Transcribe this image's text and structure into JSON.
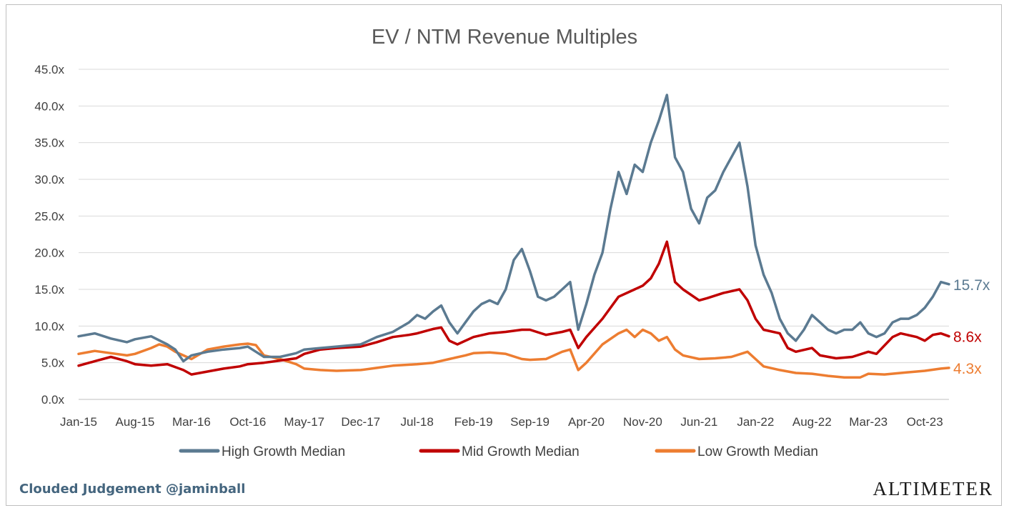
{
  "chart_data": {
    "type": "line",
    "title": "EV / NTM Revenue Multiples",
    "xlabel": "",
    "ylabel": "",
    "ylim": [
      0,
      45
    ],
    "y_ticks": [
      "0.0x",
      "5.0x",
      "10.0x",
      "15.0x",
      "20.0x",
      "25.0x",
      "30.0x",
      "35.0x",
      "40.0x",
      "45.0x"
    ],
    "x_ticks": [
      "Jan-15",
      "Aug-15",
      "Mar-16",
      "Oct-16",
      "May-17",
      "Dec-17",
      "Jul-18",
      "Feb-19",
      "Sep-19",
      "Apr-20",
      "Nov-20",
      "Jun-21",
      "Jan-22",
      "Aug-22",
      "Mar-23",
      "Oct-23"
    ],
    "x_range": [
      "Jan-15",
      "Jan-24"
    ],
    "grid": "horizontal",
    "legend_position": "bottom",
    "series": [
      {
        "name": "High Growth Median",
        "color": "#5b7a91",
        "end_label": "15.7x",
        "points": [
          [
            "Jan-15",
            8.6
          ],
          [
            "Mar-15",
            9.0
          ],
          [
            "May-15",
            8.3
          ],
          [
            "Jul-15",
            7.8
          ],
          [
            "Aug-15",
            8.2
          ],
          [
            "Oct-15",
            8.6
          ],
          [
            "Dec-15",
            7.5
          ],
          [
            "Jan-16",
            6.8
          ],
          [
            "Feb-16",
            5.2
          ],
          [
            "Mar-16",
            6.0
          ],
          [
            "May-16",
            6.5
          ],
          [
            "Jul-16",
            6.8
          ],
          [
            "Sep-16",
            7.0
          ],
          [
            "Oct-16",
            7.2
          ],
          [
            "Nov-16",
            6.5
          ],
          [
            "Dec-16",
            5.8
          ],
          [
            "Feb-17",
            5.8
          ],
          [
            "Apr-17",
            6.3
          ],
          [
            "May-17",
            6.8
          ],
          [
            "Jul-17",
            7.0
          ],
          [
            "Sep-17",
            7.2
          ],
          [
            "Dec-17",
            7.5
          ],
          [
            "Feb-18",
            8.5
          ],
          [
            "Apr-18",
            9.2
          ],
          [
            "Jun-18",
            10.5
          ],
          [
            "Jul-18",
            11.5
          ],
          [
            "Aug-18",
            11.0
          ],
          [
            "Sep-18",
            12.0
          ],
          [
            "Oct-18",
            12.8
          ],
          [
            "Nov-18",
            10.5
          ],
          [
            "Dec-18",
            9.0
          ],
          [
            "Jan-19",
            10.5
          ],
          [
            "Feb-19",
            12.0
          ],
          [
            "Mar-19",
            13.0
          ],
          [
            "Apr-19",
            13.5
          ],
          [
            "May-19",
            13.0
          ],
          [
            "Jun-19",
            15.0
          ],
          [
            "Jul-19",
            19.0
          ],
          [
            "Aug-19",
            20.5
          ],
          [
            "Sep-19",
            17.5
          ],
          [
            "Oct-19",
            14.0
          ],
          [
            "Nov-19",
            13.5
          ],
          [
            "Dec-19",
            14.0
          ],
          [
            "Jan-20",
            15.0
          ],
          [
            "Feb-20",
            16.0
          ],
          [
            "Mar-20",
            9.5
          ],
          [
            "Apr-20",
            13.0
          ],
          [
            "May-20",
            17.0
          ],
          [
            "Jun-20",
            20.0
          ],
          [
            "Jul-20",
            26.0
          ],
          [
            "Aug-20",
            31.0
          ],
          [
            "Sep-20",
            28.0
          ],
          [
            "Oct-20",
            32.0
          ],
          [
            "Nov-20",
            31.0
          ],
          [
            "Dec-20",
            35.0
          ],
          [
            "Jan-21",
            38.0
          ],
          [
            "Feb-21",
            41.5
          ],
          [
            "Mar-21",
            33.0
          ],
          [
            "Apr-21",
            31.0
          ],
          [
            "May-21",
            26.0
          ],
          [
            "Jun-21",
            24.0
          ],
          [
            "Jul-21",
            27.5
          ],
          [
            "Aug-21",
            28.5
          ],
          [
            "Sep-21",
            31.0
          ],
          [
            "Oct-21",
            33.0
          ],
          [
            "Nov-21",
            35.0
          ],
          [
            "Dec-21",
            29.0
          ],
          [
            "Jan-22",
            21.0
          ],
          [
            "Feb-22",
            17.0
          ],
          [
            "Mar-22",
            14.5
          ],
          [
            "Apr-22",
            11.0
          ],
          [
            "May-22",
            9.0
          ],
          [
            "Jun-22",
            8.0
          ],
          [
            "Jul-22",
            9.5
          ],
          [
            "Aug-22",
            11.5
          ],
          [
            "Sep-22",
            10.5
          ],
          [
            "Oct-22",
            9.5
          ],
          [
            "Nov-22",
            9.0
          ],
          [
            "Dec-22",
            9.5
          ],
          [
            "Jan-23",
            9.5
          ],
          [
            "Feb-23",
            10.5
          ],
          [
            "Mar-23",
            9.0
          ],
          [
            "Apr-23",
            8.5
          ],
          [
            "May-23",
            9.0
          ],
          [
            "Jun-23",
            10.5
          ],
          [
            "Jul-23",
            11.0
          ],
          [
            "Aug-23",
            11.0
          ],
          [
            "Sep-23",
            11.5
          ],
          [
            "Oct-23",
            12.5
          ],
          [
            "Nov-23",
            14.0
          ],
          [
            "Dec-23",
            16.0
          ],
          [
            "Jan-24",
            15.7
          ]
        ]
      },
      {
        "name": "Mid Growth Median",
        "color": "#c00000",
        "end_label": "8.6x",
        "points": [
          [
            "Jan-15",
            4.6
          ],
          [
            "Mar-15",
            5.2
          ],
          [
            "May-15",
            5.8
          ],
          [
            "Jul-15",
            5.2
          ],
          [
            "Aug-15",
            4.8
          ],
          [
            "Oct-15",
            4.6
          ],
          [
            "Dec-15",
            4.8
          ],
          [
            "Feb-16",
            4.0
          ],
          [
            "Mar-16",
            3.4
          ],
          [
            "May-16",
            3.8
          ],
          [
            "Jul-16",
            4.2
          ],
          [
            "Sep-16",
            4.5
          ],
          [
            "Oct-16",
            4.8
          ],
          [
            "Dec-16",
            5.0
          ],
          [
            "Feb-17",
            5.3
          ],
          [
            "Apr-17",
            5.6
          ],
          [
            "May-17",
            6.2
          ],
          [
            "Jul-17",
            6.8
          ],
          [
            "Sep-17",
            7.0
          ],
          [
            "Dec-17",
            7.2
          ],
          [
            "Feb-18",
            7.8
          ],
          [
            "Apr-18",
            8.5
          ],
          [
            "Jun-18",
            8.8
          ],
          [
            "Jul-18",
            9.0
          ],
          [
            "Sep-18",
            9.6
          ],
          [
            "Oct-18",
            9.8
          ],
          [
            "Nov-18",
            8.0
          ],
          [
            "Dec-18",
            7.5
          ],
          [
            "Feb-19",
            8.5
          ],
          [
            "Apr-19",
            9.0
          ],
          [
            "Jun-19",
            9.2
          ],
          [
            "Aug-19",
            9.5
          ],
          [
            "Sep-19",
            9.5
          ],
          [
            "Nov-19",
            8.8
          ],
          [
            "Jan-20",
            9.2
          ],
          [
            "Feb-20",
            9.5
          ],
          [
            "Mar-20",
            7.0
          ],
          [
            "Apr-20",
            8.5
          ],
          [
            "Jun-20",
            11.0
          ],
          [
            "Aug-20",
            14.0
          ],
          [
            "Oct-20",
            15.0
          ],
          [
            "Nov-20",
            15.5
          ],
          [
            "Dec-20",
            16.5
          ],
          [
            "Jan-21",
            18.5
          ],
          [
            "Feb-21",
            21.5
          ],
          [
            "Mar-21",
            16.0
          ],
          [
            "Apr-21",
            15.0
          ],
          [
            "Jun-21",
            13.5
          ],
          [
            "Jul-21",
            13.8
          ],
          [
            "Sep-21",
            14.5
          ],
          [
            "Nov-21",
            15.0
          ],
          [
            "Dec-21",
            13.5
          ],
          [
            "Jan-22",
            11.0
          ],
          [
            "Feb-22",
            9.5
          ],
          [
            "Apr-22",
            9.0
          ],
          [
            "May-22",
            7.0
          ],
          [
            "Jun-22",
            6.5
          ],
          [
            "Aug-22",
            7.0
          ],
          [
            "Sep-22",
            6.0
          ],
          [
            "Nov-22",
            5.6
          ],
          [
            "Jan-23",
            5.8
          ],
          [
            "Mar-23",
            6.5
          ],
          [
            "Apr-23",
            6.2
          ],
          [
            "Jun-23",
            8.5
          ],
          [
            "Jul-23",
            9.0
          ],
          [
            "Sep-23",
            8.5
          ],
          [
            "Oct-23",
            8.0
          ],
          [
            "Nov-23",
            8.8
          ],
          [
            "Dec-23",
            9.0
          ],
          [
            "Jan-24",
            8.6
          ]
        ]
      },
      {
        "name": "Low Growth Median",
        "color": "#ed7d31",
        "end_label": "4.3x",
        "points": [
          [
            "Jan-15",
            6.2
          ],
          [
            "Mar-15",
            6.6
          ],
          [
            "May-15",
            6.3
          ],
          [
            "Jul-15",
            6.0
          ],
          [
            "Aug-15",
            6.2
          ],
          [
            "Oct-15",
            7.0
          ],
          [
            "Nov-15",
            7.5
          ],
          [
            "Dec-15",
            7.2
          ],
          [
            "Jan-16",
            6.5
          ],
          [
            "Mar-16",
            5.5
          ],
          [
            "May-16",
            6.8
          ],
          [
            "Jul-16",
            7.2
          ],
          [
            "Sep-16",
            7.5
          ],
          [
            "Oct-16",
            7.6
          ],
          [
            "Nov-16",
            7.4
          ],
          [
            "Dec-16",
            6.0
          ],
          [
            "Feb-17",
            5.5
          ],
          [
            "Apr-17",
            4.8
          ],
          [
            "May-17",
            4.2
          ],
          [
            "Jul-17",
            4.0
          ],
          [
            "Sep-17",
            3.9
          ],
          [
            "Dec-17",
            4.0
          ],
          [
            "Feb-18",
            4.3
          ],
          [
            "Apr-18",
            4.6
          ],
          [
            "Jul-18",
            4.8
          ],
          [
            "Sep-18",
            5.0
          ],
          [
            "Nov-18",
            5.5
          ],
          [
            "Jan-19",
            6.0
          ],
          [
            "Feb-19",
            6.3
          ],
          [
            "Apr-19",
            6.4
          ],
          [
            "Jun-19",
            6.2
          ],
          [
            "Aug-19",
            5.5
          ],
          [
            "Sep-19",
            5.4
          ],
          [
            "Nov-19",
            5.5
          ],
          [
            "Jan-20",
            6.5
          ],
          [
            "Feb-20",
            6.8
          ],
          [
            "Mar-20",
            4.0
          ],
          [
            "Apr-20",
            5.0
          ],
          [
            "Jun-20",
            7.5
          ],
          [
            "Aug-20",
            9.0
          ],
          [
            "Sep-20",
            9.5
          ],
          [
            "Oct-20",
            8.5
          ],
          [
            "Nov-20",
            9.5
          ],
          [
            "Dec-20",
            9.0
          ],
          [
            "Jan-21",
            8.0
          ],
          [
            "Feb-21",
            8.5
          ],
          [
            "Mar-21",
            6.8
          ],
          [
            "Apr-21",
            6.0
          ],
          [
            "Jun-21",
            5.5
          ],
          [
            "Aug-21",
            5.6
          ],
          [
            "Oct-21",
            5.8
          ],
          [
            "Dec-21",
            6.5
          ],
          [
            "Jan-22",
            5.5
          ],
          [
            "Feb-22",
            4.5
          ],
          [
            "Apr-22",
            4.0
          ],
          [
            "Jun-22",
            3.6
          ],
          [
            "Aug-22",
            3.5
          ],
          [
            "Oct-22",
            3.2
          ],
          [
            "Dec-22",
            3.0
          ],
          [
            "Feb-23",
            3.0
          ],
          [
            "Mar-23",
            3.5
          ],
          [
            "May-23",
            3.4
          ],
          [
            "Jul-23",
            3.6
          ],
          [
            "Sep-23",
            3.8
          ],
          [
            "Oct-23",
            3.9
          ],
          [
            "Dec-23",
            4.2
          ],
          [
            "Jan-24",
            4.3
          ]
        ]
      }
    ]
  },
  "footer": {
    "credit": "Clouded Judgement @jaminball",
    "brand": "ALTIMETER"
  },
  "colors": {
    "credit": "#44657e",
    "grid": "#d9d9d9",
    "axis": "#bfbfbf"
  }
}
